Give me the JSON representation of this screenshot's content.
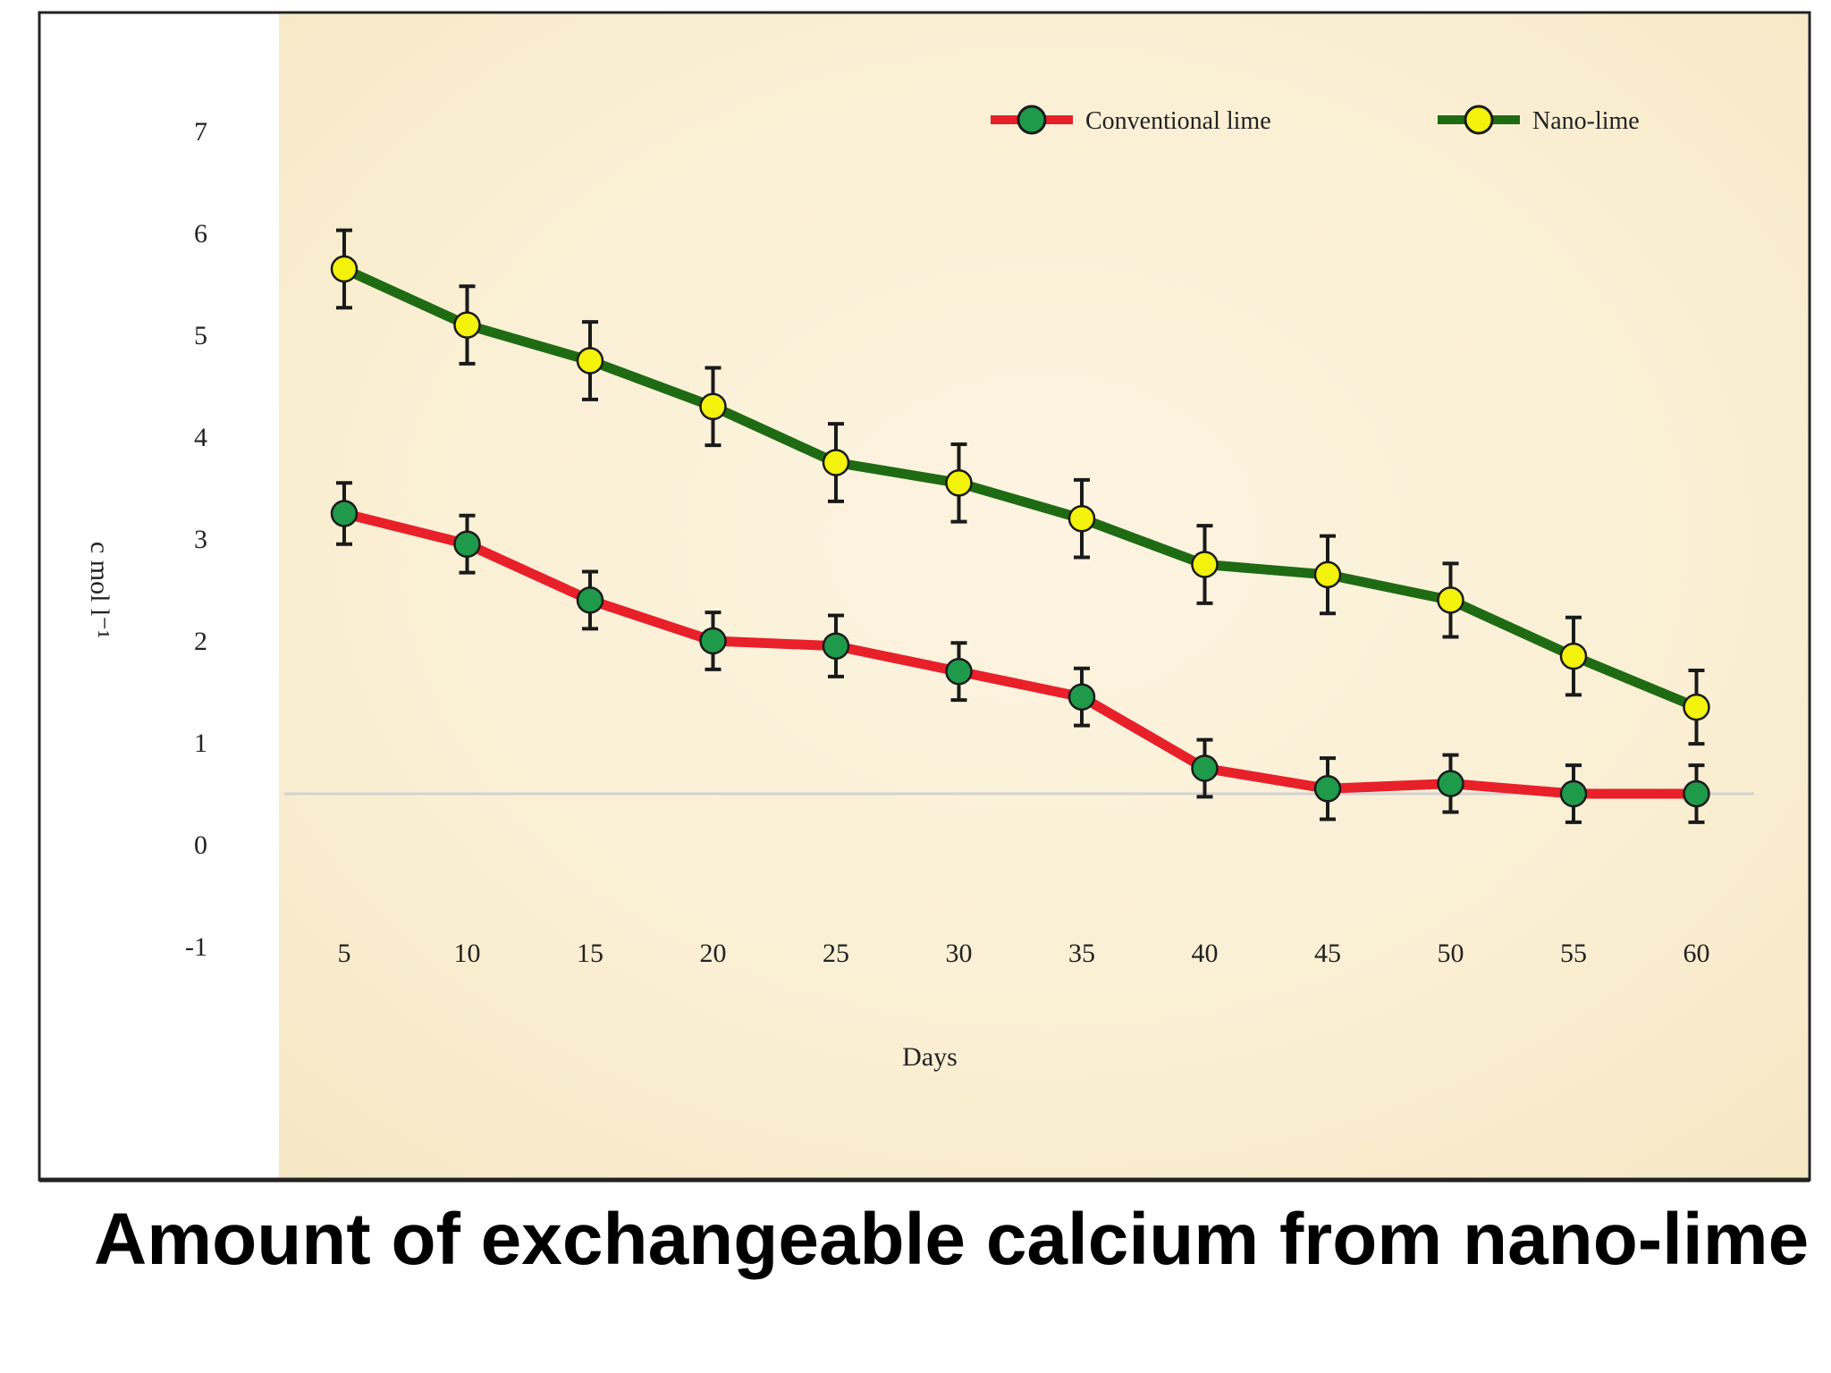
{
  "caption": "Amount of exchangeable calcium from nano-lime",
  "chart_data": {
    "type": "line",
    "title": "",
    "xlabel": "Days",
    "ylabel": "c mol l⁻¹",
    "x": [
      5,
      10,
      15,
      20,
      25,
      30,
      35,
      40,
      45,
      50,
      55,
      60
    ],
    "y_ticks": [
      -1,
      0,
      1,
      2,
      3,
      4,
      5,
      6,
      7
    ],
    "ylim": [
      -1,
      7
    ],
    "reference_line_y": 0.5,
    "legend_position": "top-right",
    "error_bars": true,
    "grid": false,
    "series": [
      {
        "name": "Conventional lime",
        "line_color": "#e8202a",
        "marker_color": "#1f9a4a",
        "values": [
          3.25,
          2.95,
          2.4,
          2.0,
          1.95,
          1.7,
          1.45,
          0.75,
          0.55,
          0.6,
          0.5,
          0.5
        ],
        "errors": [
          0.3,
          0.28,
          0.28,
          0.28,
          0.3,
          0.28,
          0.28,
          0.28,
          0.3,
          0.28,
          0.28,
          0.28
        ]
      },
      {
        "name": "Nano-lime",
        "line_color": "#1f6b14",
        "marker_color": "#f2f20a",
        "values": [
          5.65,
          5.1,
          4.75,
          4.3,
          3.75,
          3.55,
          3.2,
          2.75,
          2.65,
          2.4,
          1.85,
          1.35
        ],
        "errors": [
          0.38,
          0.38,
          0.38,
          0.38,
          0.38,
          0.38,
          0.38,
          0.38,
          0.38,
          0.36,
          0.38,
          0.36
        ]
      }
    ]
  }
}
